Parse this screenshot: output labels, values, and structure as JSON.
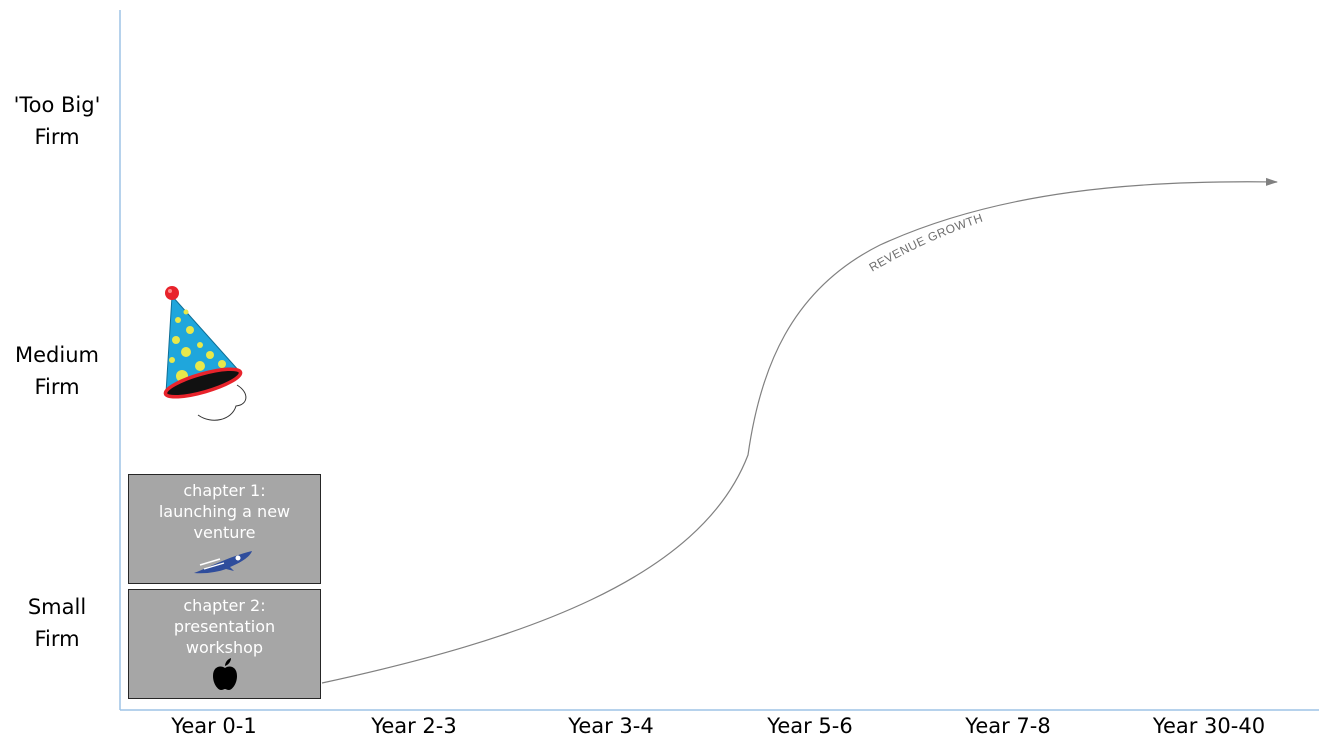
{
  "y_axis": {
    "levels": [
      {
        "label": "'Too Big'\nFirm"
      },
      {
        "label": "Medium\nFirm"
      },
      {
        "label": "Small\nFirm"
      }
    ]
  },
  "x_axis": {
    "labels": [
      "Year 0-1",
      "Year 2-3",
      "Year 3-4",
      "Year 5-6",
      "Year 7-8",
      "Year 30-40"
    ]
  },
  "curve": {
    "label": "REVENUE GROWTH"
  },
  "chapters": [
    {
      "title": "chapter 1:\nlaunching a new\nventure",
      "icon": "rocket-icon"
    },
    {
      "title": "chapter 2:\npresentation\nworkshop",
      "icon": "apple-logo-icon"
    }
  ],
  "decoration": {
    "icon": "party-hat-icon"
  },
  "colors": {
    "axis": "#9dc3e6",
    "curve": "#808080",
    "box_fill": "#a6a6a6",
    "box_border": "#262626",
    "hat_blue": "#1fa6dc",
    "hat_dots": "#e8e84a",
    "hat_brim": "#e8232b",
    "rocket": "#2f4d9c"
  }
}
